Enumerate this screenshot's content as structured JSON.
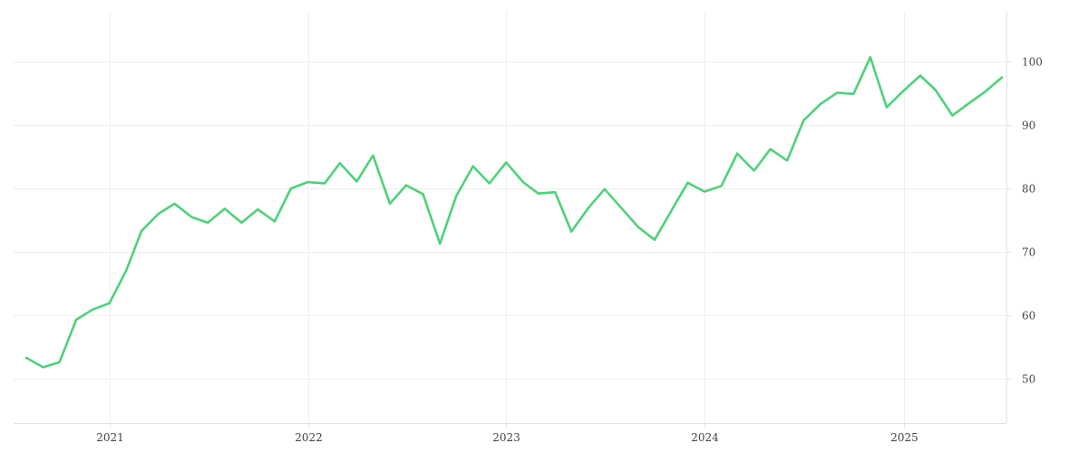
{
  "chart_data": {
    "type": "line",
    "title": "",
    "xlabel": "",
    "ylabel": "",
    "grid": true,
    "y_axis_position": "right",
    "xlim": [
      "2020-08-01",
      "2025-07-01"
    ],
    "ylim": [
      43,
      108
    ],
    "x_ticks": [
      {
        "value": "2021-01-01",
        "label": "2021"
      },
      {
        "value": "2022-01-01",
        "label": "2022"
      },
      {
        "value": "2023-01-01",
        "label": "2023"
      },
      {
        "value": "2024-01-01",
        "label": "2024"
      },
      {
        "value": "2025-01-01",
        "label": "2025"
      }
    ],
    "y_ticks": [
      50,
      60,
      70,
      80,
      90,
      100
    ],
    "series": [
      {
        "color": "#4fd17a",
        "x": [
          "2020-08-01",
          "2020-09-01",
          "2020-10-01",
          "2020-11-01",
          "2020-12-01",
          "2021-01-01",
          "2021-02-01",
          "2021-03-01",
          "2021-04-01",
          "2021-05-01",
          "2021-06-01",
          "2021-07-01",
          "2021-08-01",
          "2021-09-01",
          "2021-10-01",
          "2021-11-01",
          "2021-12-01",
          "2022-01-01",
          "2022-02-01",
          "2022-03-01",
          "2022-04-01",
          "2022-05-01",
          "2022-06-01",
          "2022-07-01",
          "2022-08-01",
          "2022-09-01",
          "2022-10-01",
          "2022-11-01",
          "2022-12-01",
          "2023-01-01",
          "2023-02-01",
          "2023-03-01",
          "2023-04-01",
          "2023-05-01",
          "2023-06-01",
          "2023-07-01",
          "2023-08-01",
          "2023-09-01",
          "2023-10-01",
          "2023-11-01",
          "2023-12-01",
          "2024-01-01",
          "2024-02-01",
          "2024-03-01",
          "2024-04-01",
          "2024-05-01",
          "2024-06-01",
          "2024-07-01",
          "2024-08-01",
          "2024-09-01",
          "2024-10-01",
          "2024-11-01",
          "2024-12-01",
          "2025-01-01",
          "2025-02-01",
          "2025-03-01",
          "2025-04-01",
          "2025-05-01",
          "2025-06-01",
          "2025-07-01"
        ],
        "values": [
          53.3,
          51.8,
          52.6,
          59.3,
          60.9,
          61.9,
          67.1,
          73.3,
          76.0,
          77.6,
          75.5,
          74.6,
          76.8,
          74.6,
          76.7,
          74.8,
          80.0,
          81.0,
          80.8,
          84.0,
          81.1,
          85.2,
          77.6,
          80.5,
          79.1,
          71.3,
          78.8,
          83.5,
          80.8,
          84.1,
          81.0,
          79.2,
          79.4,
          73.2,
          76.9,
          79.9,
          76.9,
          73.9,
          71.9,
          76.5,
          80.9,
          79.5,
          80.4,
          85.5,
          82.8,
          86.2,
          84.4,
          90.7,
          93.3,
          95.1,
          94.9,
          100.7,
          92.8,
          95.4,
          97.8,
          95.5,
          91.5,
          93.4,
          95.3,
          97.5
        ]
      }
    ]
  }
}
